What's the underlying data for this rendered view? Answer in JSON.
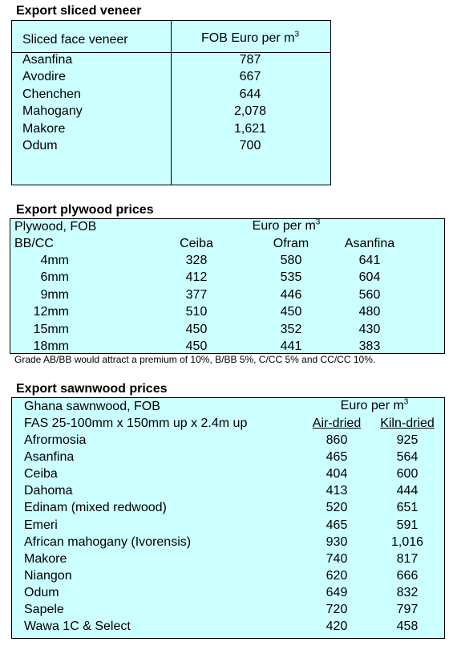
{
  "veneer": {
    "title": "Export sliced veneer",
    "header": {
      "name": "Sliced face veneer",
      "unit": "FOB Euro per m",
      "unit_sup": "3"
    },
    "rows": [
      [
        "Asanfina",
        "787"
      ],
      [
        "Avodire",
        "667"
      ],
      [
        "Chenchen",
        "644"
      ],
      [
        "Mahogany",
        "2,078"
      ],
      [
        "Makore",
        "1,621"
      ],
      [
        "Odum",
        "700"
      ]
    ]
  },
  "plywood": {
    "title": "Export plywood prices",
    "header": {
      "name": "Plywood, FOB",
      "grade": "BB/CC",
      "unit": "Euro per m",
      "unit_sup": "3",
      "columns": [
        "Ceiba",
        "Ofram",
        "Asanfina"
      ]
    },
    "rows": [
      [
        "4mm",
        "328",
        "580",
        "641"
      ],
      [
        "6mm",
        "412",
        "535",
        "604"
      ],
      [
        "9mm",
        "377",
        "446",
        "560"
      ],
      [
        "12mm",
        "510",
        "450",
        "480"
      ],
      [
        "15mm",
        "450",
        "352",
        "430"
      ],
      [
        "18mm",
        "450",
        "441",
        "383"
      ]
    ],
    "note": "Grade AB/BB would attract a premium of 10%, B/BB 5%, C/CC 5% and CC/CC 10%."
  },
  "sawnwood": {
    "title": "Export sawnwood prices",
    "header": {
      "name": "Ghana sawnwood, FOB",
      "spec": "FAS 25-100mm x 150mm up x 2.4m up",
      "unit": "Euro per m",
      "unit_sup": "3",
      "columns": [
        "Air-dried",
        "Kiln-dried"
      ]
    },
    "rows": [
      [
        "Afrormosia",
        "860",
        "925"
      ],
      [
        "Asanfina",
        "465",
        "564"
      ],
      [
        "Ceiba",
        "404",
        "600"
      ],
      [
        "Dahoma",
        "413",
        "444"
      ],
      [
        "Edinam (mixed redwood)",
        "520",
        "651"
      ],
      [
        "Emeri",
        "465",
        "591"
      ],
      [
        "African mahogany (Ivorensis)",
        "930",
        "1,016"
      ],
      [
        "Makore",
        "740",
        "817"
      ],
      [
        "Niangon",
        "620",
        "666"
      ],
      [
        "Odum",
        "649",
        "832"
      ],
      [
        "Sapele",
        "720",
        "797"
      ],
      [
        "Wawa 1C & Select",
        "420",
        "458"
      ]
    ]
  }
}
